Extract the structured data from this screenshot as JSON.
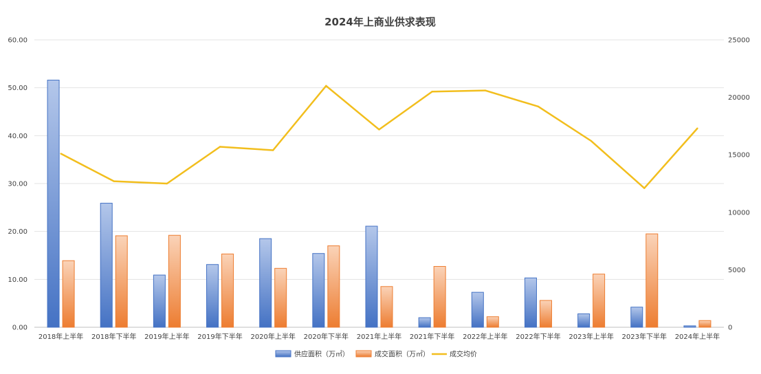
{
  "chart_data": {
    "type": "bar",
    "title": "2024年上商业供求表现",
    "categories": [
      "2018年上半年",
      "2018年下半年",
      "2019年上半年",
      "2019年下半年",
      "2020年上半年",
      "2020年下半年",
      "2021年上半年",
      "2021年下半年",
      "2022年上半年",
      "2022年下半年",
      "2023年上半年",
      "2023年下半年",
      "2024年上半年"
    ],
    "series": [
      {
        "name": "供应面积（万㎡）",
        "kind": "bar",
        "axis": "left",
        "color": "#4472C4",
        "values": [
          51.6,
          25.9,
          10.9,
          13.1,
          18.5,
          15.4,
          21.1,
          2.0,
          7.3,
          10.3,
          2.8,
          4.2,
          0.3
        ]
      },
      {
        "name": "成交面积（万㎡）",
        "kind": "bar",
        "axis": "left",
        "color": "#ED7D31",
        "values": [
          13.9,
          19.1,
          19.2,
          15.3,
          12.3,
          17.0,
          8.5,
          12.7,
          2.2,
          5.6,
          11.1,
          19.5,
          1.4
        ]
      },
      {
        "name": "成交均价",
        "kind": "line",
        "axis": "right",
        "color": "#F2BE1D",
        "values": [
          15100,
          12700,
          12500,
          15700,
          15400,
          21000,
          17200,
          20500,
          20600,
          19200,
          16200,
          12100,
          17300
        ]
      }
    ],
    "y_left": {
      "min": 0,
      "max": 60,
      "step": 10,
      "tick_labels": [
        "0.00",
        "10.00",
        "20.00",
        "30.00",
        "40.00",
        "50.00",
        "60.00"
      ]
    },
    "y_right": {
      "min": 0,
      "max": 25000,
      "step": 5000,
      "tick_labels": [
        "0",
        "5000",
        "10000",
        "15000",
        "20000",
        "25000"
      ]
    },
    "grid": true,
    "legend_position": "bottom"
  }
}
